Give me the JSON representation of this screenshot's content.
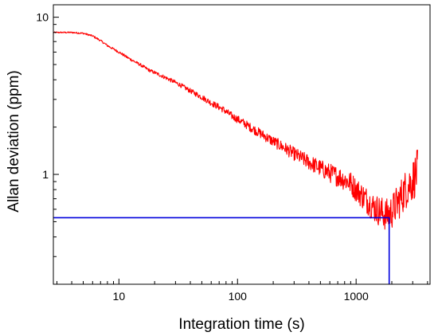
{
  "chart_data": {
    "type": "line",
    "title": "",
    "xlabel": "Integration time (s)",
    "ylabel": "Allan deviation (ppm)",
    "x_scale": "log",
    "y_scale": "log",
    "xlim": [
      2.8,
      4200
    ],
    "ylim": [
      0.2,
      12
    ],
    "x_ticks": [
      {
        "value": 10,
        "label": "10"
      },
      {
        "value": 100,
        "label": "100"
      },
      {
        "value": 1000,
        "label": "1000"
      }
    ],
    "y_ticks": [
      {
        "value": 1,
        "label": "1"
      },
      {
        "value": 10,
        "label": "10"
      }
    ],
    "grid": false,
    "legend": "none",
    "series": [
      {
        "color": "#ff0000",
        "x": [
          2.8,
          3.2,
          4,
          5,
          6,
          7,
          8,
          10,
          12,
          15,
          18,
          22,
          27,
          33,
          40,
          50,
          60,
          75,
          90,
          110,
          130,
          160,
          200,
          250,
          300,
          380,
          470,
          600,
          750,
          900,
          1000,
          1200,
          1400,
          1600,
          1800,
          2000,
          2300,
          2600,
          3000,
          3300
        ],
        "y": [
          8.0,
          8.0,
          8.0,
          7.9,
          7.6,
          7.1,
          6.6,
          6.0,
          5.5,
          5.0,
          4.6,
          4.3,
          4.0,
          3.7,
          3.4,
          3.1,
          2.85,
          2.6,
          2.35,
          2.15,
          1.98,
          1.8,
          1.62,
          1.47,
          1.35,
          1.22,
          1.12,
          1.02,
          0.95,
          0.88,
          0.8,
          0.7,
          0.62,
          0.58,
          0.55,
          0.58,
          0.68,
          0.8,
          0.92,
          1.05
        ]
      },
      {
        "color": "#0000dd",
        "x": [
          2.8,
          1900,
          1900
        ],
        "y": [
          0.53,
          0.53,
          0.2
        ]
      }
    ]
  }
}
